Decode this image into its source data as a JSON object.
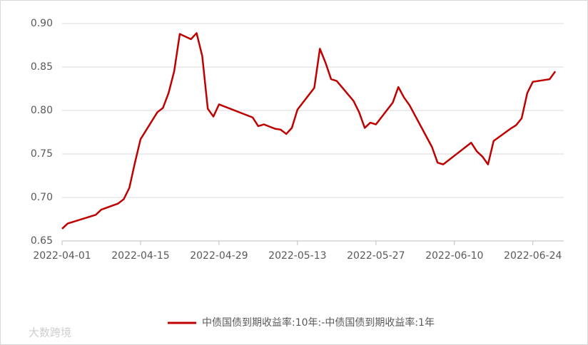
{
  "chart_data": {
    "type": "line",
    "x": [
      "2022-04-01",
      "2022-04-02",
      "2022-04-07",
      "2022-04-08",
      "2022-04-11",
      "2022-04-12",
      "2022-04-13",
      "2022-04-14",
      "2022-04-15",
      "2022-04-18",
      "2022-04-19",
      "2022-04-20",
      "2022-04-21",
      "2022-04-22",
      "2022-04-24",
      "2022-04-25",
      "2022-04-26",
      "2022-04-27",
      "2022-04-28",
      "2022-04-29",
      "2022-05-05",
      "2022-05-06",
      "2022-05-07",
      "2022-05-09",
      "2022-05-10",
      "2022-05-11",
      "2022-05-12",
      "2022-05-13",
      "2022-05-16",
      "2022-05-17",
      "2022-05-18",
      "2022-05-19",
      "2022-05-20",
      "2022-05-23",
      "2022-05-24",
      "2022-05-25",
      "2022-05-26",
      "2022-05-27",
      "2022-05-30",
      "2022-05-31",
      "2022-06-01",
      "2022-06-02",
      "2022-06-06",
      "2022-06-07",
      "2022-06-08",
      "2022-06-13",
      "2022-06-14",
      "2022-06-15",
      "2022-06-16",
      "2022-06-17",
      "2022-06-20",
      "2022-06-21",
      "2022-06-22",
      "2022-06-23",
      "2022-06-24",
      "2022-06-27",
      "2022-06-28"
    ],
    "series": [
      {
        "name": "中债国债到期收益率:10年:-中债国债到期收益率:1年",
        "color": "#c00000",
        "values": [
          0.664,
          0.67,
          0.68,
          0.686,
          0.693,
          0.698,
          0.711,
          0.74,
          0.767,
          0.798,
          0.803,
          0.82,
          0.845,
          0.888,
          0.882,
          0.889,
          0.863,
          0.802,
          0.793,
          0.807,
          0.792,
          0.782,
          0.784,
          0.779,
          0.778,
          0.773,
          0.78,
          0.801,
          0.826,
          0.871,
          0.855,
          0.836,
          0.834,
          0.811,
          0.798,
          0.78,
          0.786,
          0.784,
          0.809,
          0.827,
          0.815,
          0.806,
          0.758,
          0.74,
          0.738,
          0.763,
          0.753,
          0.747,
          0.738,
          0.765,
          0.779,
          0.783,
          0.791,
          0.82,
          0.833,
          0.836,
          0.845
        ]
      }
    ],
    "xlim": [
      "2022-04-01",
      "2022-06-29"
    ],
    "xticks": [
      "2022-04-01",
      "2022-04-15",
      "2022-04-29",
      "2022-05-13",
      "2022-05-27",
      "2022-06-10",
      "2022-06-24"
    ],
    "ylim": [
      0.65,
      0.9
    ],
    "yticks": [
      0.65,
      {
        "value": 0.7,
        "label": "0.70"
      },
      0.75,
      {
        "value": 0.8,
        "label": "0.80"
      },
      0.85,
      {
        "value": 0.9,
        "label": "0.90"
      }
    ],
    "grid": true,
    "legend": "bottom",
    "watermark": "大数跨境"
  }
}
